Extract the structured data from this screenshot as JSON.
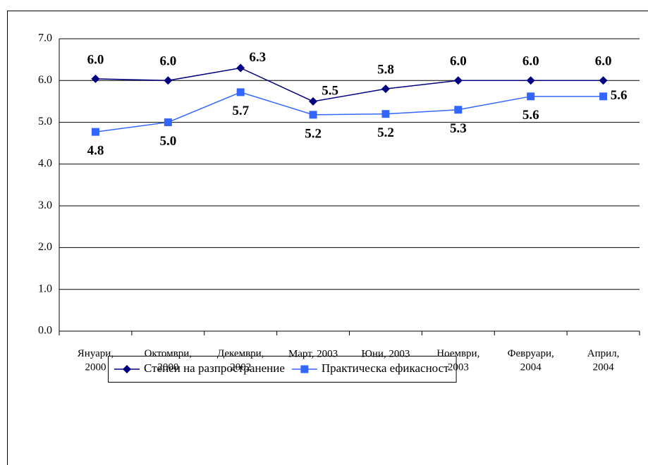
{
  "chart_data": {
    "type": "line",
    "categories": [
      "Януари,\n2000",
      "Октомври,\n2000",
      "Декември,\n2002",
      "Март, 2003",
      "Юни, 2003",
      "Ноември,\n2003",
      "Февруари,\n2004",
      "Април,\n2004"
    ],
    "series": [
      {
        "name": "Степен на разпространение",
        "color": "#000080",
        "marker": "diamond",
        "values": [
          6.04,
          6.0,
          6.3,
          5.5,
          5.8,
          6.0,
          6.0,
          6.0
        ],
        "value_labels": [
          "6.0",
          "6.0",
          "6.3",
          "5.5",
          "5.8",
          "6.0",
          "6.0",
          "6.0"
        ]
      },
      {
        "name": "Практическа ефикасност",
        "color": "#3366ff",
        "marker": "square",
        "values": [
          4.77,
          5.0,
          5.72,
          5.18,
          5.2,
          5.3,
          5.62,
          5.62
        ],
        "value_labels": [
          "4.8",
          "5.0",
          "5.7",
          "5.2",
          "5.2",
          "5.3",
          "5.6",
          "5.6"
        ]
      }
    ],
    "ylim": [
      0,
      7
    ],
    "yticks": [
      {
        "value": 0,
        "label": "0.0"
      },
      {
        "value": 1,
        "label": "1.0"
      },
      {
        "value": 2,
        "label": "2.0"
      },
      {
        "value": 3,
        "label": "3.0"
      },
      {
        "value": 4,
        "label": "4.0"
      },
      {
        "value": 5,
        "label": "5.0"
      },
      {
        "value": 6,
        "label": "6.0"
      },
      {
        "value": 7,
        "label": "7.0"
      }
    ],
    "grid": true,
    "legend": "bottom"
  }
}
